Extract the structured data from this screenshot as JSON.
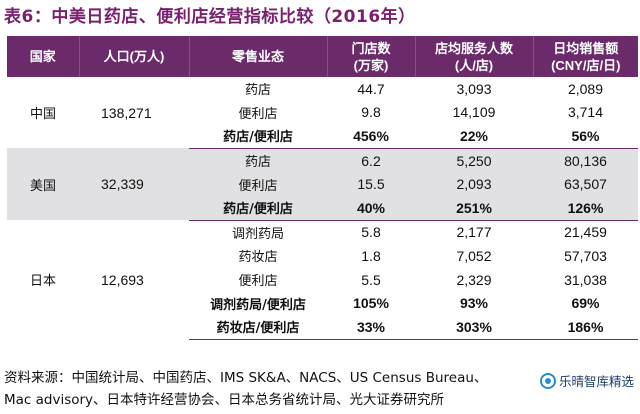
{
  "title": "表6：中美日药店、便利店经营指标比较（2016年）",
  "headers": {
    "country": "国家",
    "population": "人口(万人)",
    "format": "零售业态",
    "stores_l1": "门店数",
    "stores_l2": "(万家)",
    "service_l1": "店均服务人数",
    "service_l2": "(人/店)",
    "sales_l1": "日均销售额",
    "sales_l2": "(CNY/店/日)"
  },
  "groups": {
    "china": {
      "country": "中国",
      "population": "138,271",
      "rows": [
        {
          "format": "药店",
          "stores": "44.7",
          "service": "3,093",
          "sales": "2,089"
        },
        {
          "format": "便利店",
          "stores": "9.8",
          "service": "14,109",
          "sales": "3,714"
        },
        {
          "format": "药店/便利店",
          "stores": "456%",
          "service": "22%",
          "sales": "56%"
        }
      ]
    },
    "usa": {
      "country": "美国",
      "population": "32,339",
      "rows": [
        {
          "format": "药店",
          "stores": "6.2",
          "service": "5,250",
          "sales": "80,136"
        },
        {
          "format": "便利店",
          "stores": "15.5",
          "service": "2,093",
          "sales": "63,507"
        },
        {
          "format": "药店/便利店",
          "stores": "40%",
          "service": "251%",
          "sales": "126%"
        }
      ]
    },
    "japan": {
      "country": "日本",
      "population": "12,693",
      "rows": [
        {
          "format": "调剂药局",
          "stores": "5.8",
          "service": "2,177",
          "sales": "21,459"
        },
        {
          "format": "药妆店",
          "stores": "1.8",
          "service": "7,052",
          "sales": "57,703"
        },
        {
          "format": "便利店",
          "stores": "5.5",
          "service": "2,329",
          "sales": "31,038"
        },
        {
          "format": "调剂药局/便利店",
          "stores": "105%",
          "service": "93%",
          "sales": "69%"
        },
        {
          "format": "药妆店/便利店",
          "stores": "33%",
          "service": "303%",
          "sales": "186%"
        }
      ]
    }
  },
  "source": {
    "line1": "资料来源：中国统计局、中国药店、IMS SK&A、NACS、US Census Bureau、",
    "line2": "Mac advisory、日本特许经营协会、日本总务省统计局、光大证券研究所"
  },
  "watermark": {
    "icon": "wechat-logo-icon",
    "text": "乐晴智库精选"
  },
  "colors": {
    "header_bg": "#6b2a6a",
    "title": "#7a1f6e",
    "shade": "#e1e1e3"
  }
}
